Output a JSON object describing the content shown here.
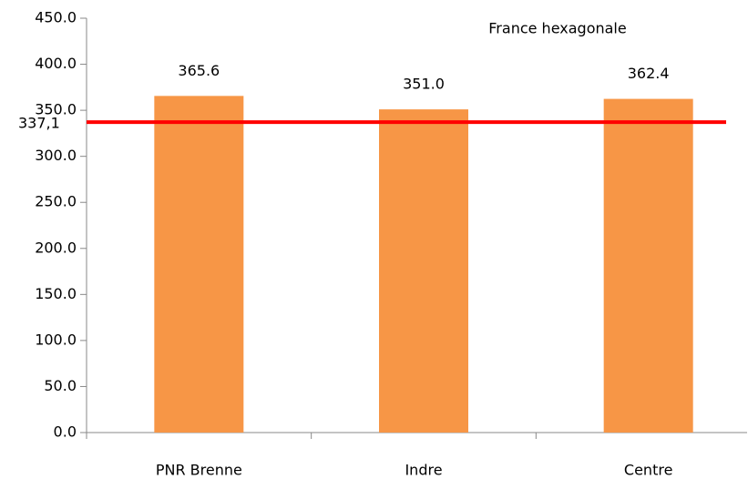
{
  "chart_data": {
    "type": "bar",
    "categories": [
      "PNR Brenne",
      "Indre",
      "Centre"
    ],
    "values": [
      365.6,
      351.0,
      362.4
    ],
    "value_labels": [
      "365.6",
      "351.0",
      "362.4"
    ],
    "color": "#f79646",
    "ylim": [
      0,
      450
    ],
    "yticks": [
      {
        "value": 0,
        "label": "0.0"
      },
      {
        "value": 50,
        "label": "50.0"
      },
      {
        "value": 100,
        "label": "100.0"
      },
      {
        "value": 150,
        "label": "150.0"
      },
      {
        "value": 200,
        "label": "200.0"
      },
      {
        "value": 250,
        "label": "250.0"
      },
      {
        "value": 300,
        "label": "300.0"
      },
      {
        "value": 350,
        "label": "350.0"
      },
      {
        "value": 400,
        "label": "400.0"
      },
      {
        "value": 450,
        "label": "450.0"
      }
    ],
    "reference_line": {
      "name": "France hexagonale",
      "value": 337.1,
      "label": "337,1",
      "color": "#ff0000"
    }
  }
}
